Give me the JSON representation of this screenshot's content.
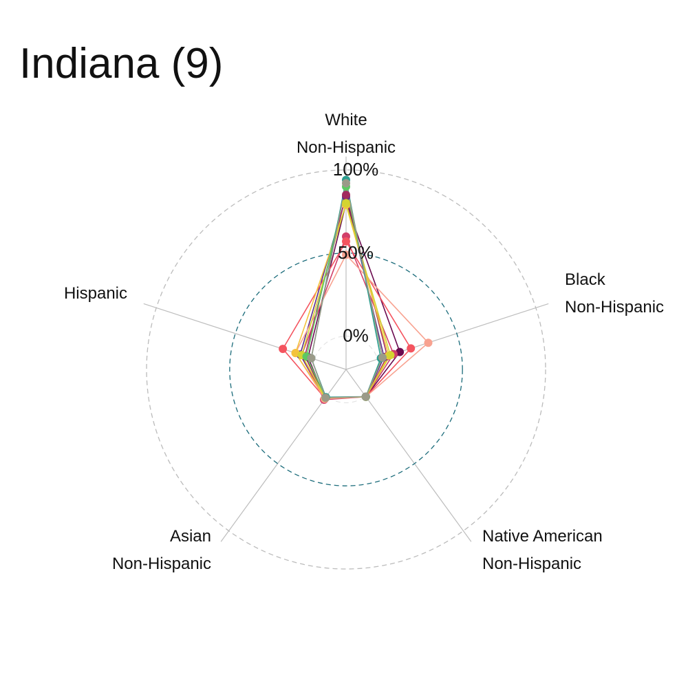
{
  "title": "Indiana (9)",
  "chart_data": {
    "type": "radar",
    "title": "Indiana (9)",
    "axes": [
      {
        "line1": "White",
        "line2": "Non-Hispanic"
      },
      {
        "line1": "Black",
        "line2": "Non-Hispanic"
      },
      {
        "line1": "Native American",
        "line2": "Non-Hispanic"
      },
      {
        "line1": "Asian",
        "line2": "Non-Hispanic"
      },
      {
        "line1": "Hispanic",
        "line2": ""
      }
    ],
    "radial_ticks": [
      {
        "value": 0,
        "label": "0%"
      },
      {
        "value": 50,
        "label": "50%"
      },
      {
        "value": 100,
        "label": "100%"
      }
    ],
    "range": [
      -20,
      100
    ],
    "gridline_colors": {
      "inner": "#1a6b7a",
      "outer": "#bbbbbb"
    },
    "series": [
      {
        "color": "#5c2d8a",
        "values": [
          84,
          4,
          0.2,
          1.8,
          9
        ]
      },
      {
        "color": "#6b0a4f",
        "values": [
          80,
          14,
          0.3,
          1.5,
          4
        ]
      },
      {
        "color": "#a12a5e",
        "values": [
          85,
          6,
          0.2,
          1.2,
          6
        ]
      },
      {
        "color": "#d13f6a",
        "values": [
          60,
          10,
          0.3,
          2.5,
          8
        ]
      },
      {
        "color": "#f4545f",
        "values": [
          57,
          21,
          0.3,
          1.5,
          20
        ]
      },
      {
        "color": "#f8a290",
        "values": [
          49,
          32,
          0.3,
          1.8,
          12
        ]
      },
      {
        "color": "#f3c33c",
        "values": [
          79,
          7,
          0.3,
          1.2,
          12
        ]
      },
      {
        "color": "#d4d431",
        "values": [
          80,
          8,
          0.2,
          1.0,
          8
        ]
      },
      {
        "color": "#5dc863",
        "values": [
          90,
          3,
          0.3,
          0.8,
          5
        ]
      },
      {
        "color": "#2a9d8f",
        "values": [
          94,
          2,
          0.2,
          0.6,
          2
        ]
      },
      {
        "color": "#9a9a88",
        "values": [
          92,
          3,
          0.2,
          1.0,
          2
        ]
      }
    ]
  }
}
